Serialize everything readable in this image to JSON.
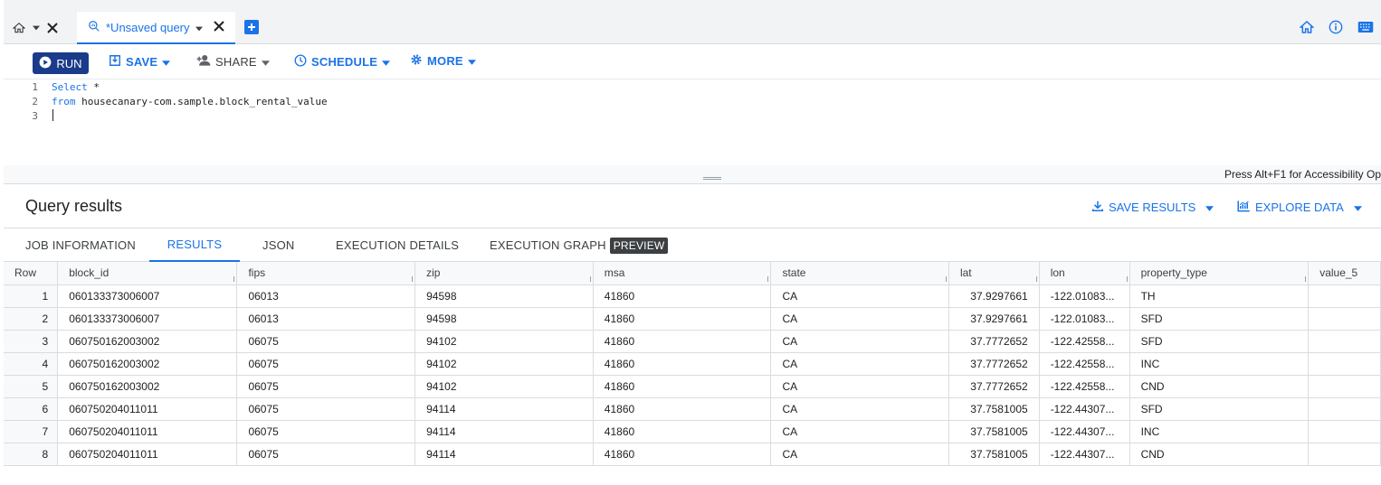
{
  "tabs": {
    "query_tab_label": "*Unsaved query"
  },
  "toolbar": {
    "run_label": "RUN",
    "save_label": "SAVE",
    "share_label": "SHARE",
    "schedule_label": "SCHEDULE",
    "more_label": "MORE"
  },
  "editor": {
    "line_numbers": [
      "1",
      "2",
      "3"
    ],
    "line1_kw": "Select",
    "line1_rest": " *",
    "line2_kw": "from",
    "line2_rest": " housecanary-com.sample.block_rental_value",
    "accessibility_hint": "Press Alt+F1 for Accessibility Op"
  },
  "results": {
    "title": "Query results",
    "save_results_label": "SAVE RESULTS",
    "explore_data_label": "EXPLORE DATA",
    "tabs": [
      "JOB INFORMATION",
      "RESULTS",
      "JSON",
      "EXECUTION DETAILS",
      "EXECUTION GRAPH"
    ],
    "preview_badge": "PREVIEW",
    "active_tab": "RESULTS"
  },
  "table": {
    "columns": [
      "Row",
      "block_id",
      "fips",
      "zip",
      "msa",
      "state",
      "lat",
      "lon",
      "property_type",
      "value_5"
    ],
    "rows": [
      [
        "1",
        "060133373006007",
        "06013",
        "94598",
        "41860",
        "CA",
        "37.9297661",
        "-122.01083...",
        "TH",
        ""
      ],
      [
        "2",
        "060133373006007",
        "06013",
        "94598",
        "41860",
        "CA",
        "37.9297661",
        "-122.01083...",
        "SFD",
        ""
      ],
      [
        "3",
        "060750162003002",
        "06075",
        "94102",
        "41860",
        "CA",
        "37.7772652",
        "-122.42558...",
        "SFD",
        ""
      ],
      [
        "4",
        "060750162003002",
        "06075",
        "94102",
        "41860",
        "CA",
        "37.7772652",
        "-122.42558...",
        "INC",
        ""
      ],
      [
        "5",
        "060750162003002",
        "06075",
        "94102",
        "41860",
        "CA",
        "37.7772652",
        "-122.42558...",
        "CND",
        ""
      ],
      [
        "6",
        "060750204011011",
        "06075",
        "94114",
        "41860",
        "CA",
        "37.7581005",
        "-122.44307...",
        "SFD",
        ""
      ],
      [
        "7",
        "060750204011011",
        "06075",
        "94114",
        "41860",
        "CA",
        "37.7581005",
        "-122.44307...",
        "INC",
        ""
      ],
      [
        "8",
        "060750204011011",
        "06075",
        "94114",
        "41860",
        "CA",
        "37.7581005",
        "-122.44307...",
        "CND",
        ""
      ]
    ]
  },
  "colors": {
    "accent": "#1a73e8",
    "run_button": "#1a3a8a"
  }
}
